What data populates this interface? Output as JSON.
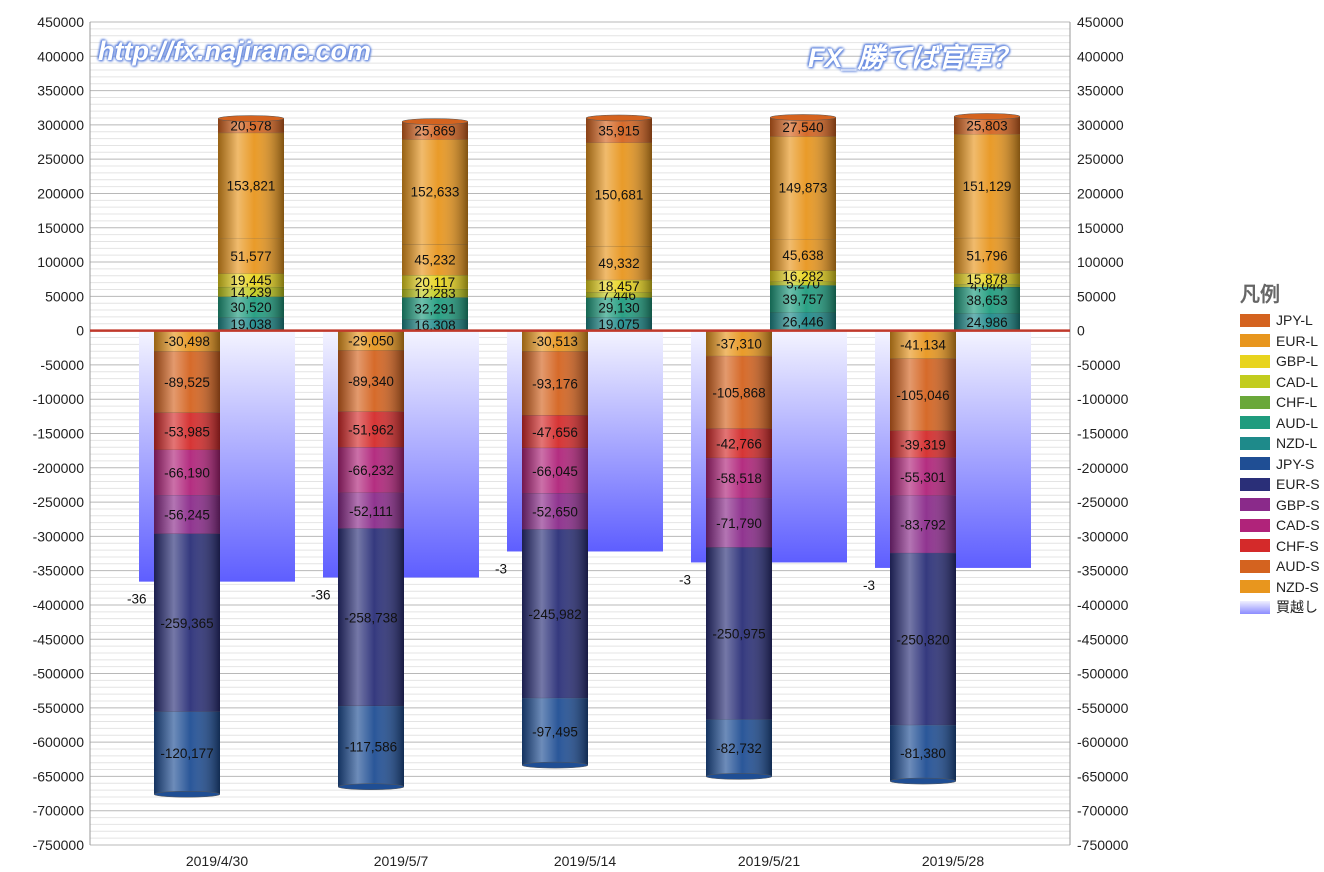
{
  "watermark": {
    "left": "http://fx.najirane.com",
    "right": "FX_勝てば官軍？"
  },
  "legend": {
    "title": "凡例",
    "items": [
      {
        "label": "JPY-L",
        "color": "#d4631f"
      },
      {
        "label": "EUR-L",
        "color": "#e8961e"
      },
      {
        "label": "GBP-L",
        "color": "#e8d41e"
      },
      {
        "label": "CAD-L",
        "color": "#c2cc1e"
      },
      {
        "label": "CHF-L",
        "color": "#6aa83a"
      },
      {
        "label": "AUD-L",
        "color": "#1f9c7e"
      },
      {
        "label": "NZD-L",
        "color": "#1e8a8a"
      },
      {
        "label": "JPY-S",
        "color": "#1f4e94"
      },
      {
        "label": "EUR-S",
        "color": "#2a2f78"
      },
      {
        "label": "GBP-S",
        "color": "#8a2a8a"
      },
      {
        "label": "CAD-S",
        "color": "#b0237a"
      },
      {
        "label": "CHF-S",
        "color": "#d42a2a"
      },
      {
        "label": "AUD-S",
        "color": "#d4631f"
      },
      {
        "label": "NZD-S",
        "color": "#e8961e"
      },
      {
        "label": "買越し",
        "color": "#9a9aff"
      }
    ]
  },
  "chart_data": {
    "type": "bar",
    "stacked": true,
    "categories": [
      "2019/4/30",
      "2019/5/7",
      "2019/5/14",
      "2019/5/21",
      "2019/5/28"
    ],
    "ylim": [
      -750000,
      450000
    ],
    "yticks": [
      "450000",
      "400000",
      "350000",
      "300000",
      "250000",
      "200000",
      "150000",
      "100000",
      "50000",
      "0",
      "-50000",
      "-100000",
      "-150000",
      "-200000",
      "-250000",
      "-300000",
      "-350000",
      "-400000",
      "-450000",
      "-500000",
      "-550000",
      "-600000",
      "-650000",
      "-700000",
      "-750000"
    ],
    "grid": true,
    "legend_position": "right",
    "long_series": [
      {
        "name": "NZD-L",
        "color": "#1e8a8a",
        "values": [
          19038,
          16308,
          19075,
          26446,
          24986
        ],
        "labels": [
          "19,038",
          "16,308",
          "19,075",
          "26,446",
          "24,986"
        ]
      },
      {
        "name": "AUD-L",
        "color": "#1f9c7e",
        "values": [
          30520,
          32291,
          29130,
          39757,
          38653
        ],
        "labels": [
          "30,520",
          "32,291",
          "29,130",
          "39,757",
          "38,653"
        ]
      },
      {
        "name": "CHF-L",
        "color": "#6aa83a",
        "values": [
          0,
          0,
          0,
          0,
          0
        ],
        "labels": [
          "",
          "",
          "",
          "",
          ""
        ]
      },
      {
        "name": "CAD-L",
        "color": "#c2cc1e",
        "values": [
          14239,
          12283,
          7446,
          5270,
          4044
        ],
        "labels": [
          "14,239",
          "12,283",
          "7,446",
          "5,270",
          "4,044"
        ]
      },
      {
        "name": "GBP-L",
        "color": "#e8d41e",
        "values": [
          19445,
          20117,
          18457,
          16282,
          15878
        ],
        "labels": [
          "19,445",
          "20,117",
          "18,457",
          "16,282",
          "15,878"
        ]
      },
      {
        "name": "EUR-L",
        "color": "#e8961e",
        "values": [
          51577,
          45232,
          49332,
          45638,
          51796
        ],
        "labels": [
          "51,577",
          "45,232",
          "49,332",
          "45,638",
          "51,796"
        ]
      },
      {
        "name": "EUR-L2",
        "color": "#e8961e",
        "values": [
          153821,
          152633,
          150681,
          149873,
          151129
        ],
        "labels": [
          "153,821",
          "152,633",
          "150,681",
          "149,873",
          "151,129"
        ]
      },
      {
        "name": "JPY-L",
        "color": "#d4631f",
        "values": [
          20578,
          25869,
          35915,
          27540,
          25803
        ],
        "labels": [
          "20,578",
          "25,869",
          "35,915",
          "27,540",
          "25,803"
        ]
      }
    ],
    "short_series": [
      {
        "name": "NZD-S",
        "color": "#e8961e",
        "values": [
          -30498,
          -29050,
          -30513,
          -37310,
          -41134
        ],
        "labels": [
          "-30,498",
          "-29,050",
          "-30,513",
          "-37,310",
          "-41,134"
        ]
      },
      {
        "name": "AUD-S",
        "color": "#d4631f",
        "values": [
          -89525,
          -89340,
          -93176,
          -105868,
          -105046
        ],
        "labels": [
          "-89,525",
          "-89,340",
          "-93,176",
          "-105,868",
          "-105,046"
        ]
      },
      {
        "name": "CHF-S",
        "color": "#d42a2a",
        "values": [
          -53985,
          -51962,
          -47656,
          -42766,
          -39319
        ],
        "labels": [
          "-53,985",
          "-51,962",
          "-47,656",
          "-42,766",
          "-39,319"
        ]
      },
      {
        "name": "CAD-S",
        "color": "#b0237a",
        "values": [
          -66190,
          -66232,
          -66045,
          -58518,
          -55301
        ],
        "labels": [
          "-66,190",
          "-66,232",
          "-66,045",
          "-58,518",
          "-55,301"
        ]
      },
      {
        "name": "GBP-S",
        "color": "#8a2a8a",
        "values": [
          -56245,
          -52111,
          -52650,
          -71790,
          -83792
        ],
        "labels": [
          "-56,245",
          "-52,111",
          "-52,650",
          "-71,790",
          "-83,792"
        ]
      },
      {
        "name": "EUR-S",
        "color": "#2a2f78",
        "values": [
          -259365,
          -258738,
          -245982,
          -250975,
          -250820
        ],
        "labels": [
          "-259,365",
          "-258,738",
          "-245,982",
          "-250,975",
          "-250,820"
        ]
      },
      {
        "name": "JPY-S",
        "color": "#1f4e94",
        "values": [
          -120177,
          -117586,
          -97495,
          -82732,
          -81380
        ],
        "labels": [
          "-120,177",
          "-117,586",
          "-97,495",
          "-82,732",
          "-81,380"
        ]
      }
    ],
    "net_series": {
      "name": "買越し",
      "color": "#7878ff",
      "values": [
        -366000,
        -360000,
        -322000,
        -338000,
        -346000
      ],
      "labels": [
        "-36",
        "-36",
        "-3",
        "-3",
        "-3"
      ]
    }
  }
}
